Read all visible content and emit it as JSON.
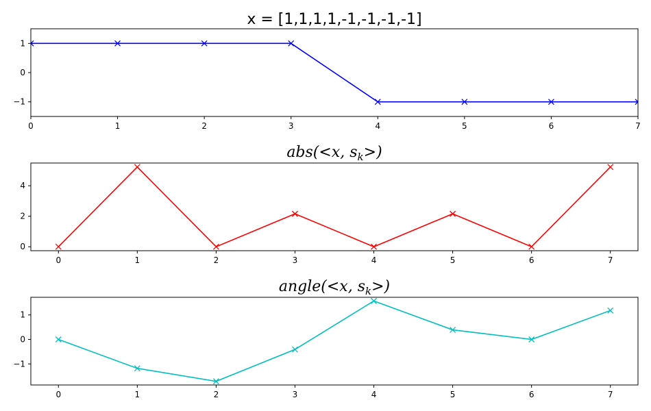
{
  "chart_data": [
    {
      "type": "line",
      "title": "x = [1,1,1,1,-1,-1,-1,-1]",
      "x": [
        0,
        1,
        2,
        3,
        4,
        5,
        6,
        7
      ],
      "series": [
        {
          "values": [
            1,
            1,
            1,
            1,
            -1,
            -1,
            -1,
            -1
          ],
          "color": "#0000ff",
          "marker": "x"
        }
      ],
      "xlim": [
        0,
        7
      ],
      "ylim": [
        -1.5,
        1.5
      ],
      "xticks": [
        0,
        1,
        2,
        3,
        4,
        5,
        6,
        7
      ],
      "yticks": [
        -1,
        0,
        1
      ],
      "ytick_labels": [
        "−1",
        "0",
        "1"
      ],
      "grid": false
    },
    {
      "type": "line",
      "title": "abs(<x, s_k>)",
      "title_parts": [
        "abs(<",
        "x",
        ", ",
        "s",
        "k",
        ">)"
      ],
      "x": [
        0,
        1,
        2,
        3,
        4,
        5,
        6,
        7
      ],
      "series": [
        {
          "values": [
            0,
            5.23,
            0,
            2.16,
            0,
            2.16,
            0,
            5.23
          ],
          "color": "#ff0000",
          "marker": "x"
        }
      ],
      "xlim": [
        -0.35,
        7.35
      ],
      "ylim": [
        -0.26,
        5.49
      ],
      "xticks": [
        0,
        1,
        2,
        3,
        4,
        5,
        6,
        7
      ],
      "yticks": [
        0,
        2,
        4
      ],
      "ytick_labels": [
        "0",
        "2",
        "4"
      ],
      "grid": false
    },
    {
      "type": "line",
      "title": "angle(<x, s_k>)",
      "title_parts": [
        "angle(<",
        "x",
        ", ",
        "s",
        "k",
        ">)"
      ],
      "x": [
        0,
        1,
        2,
        3,
        4,
        5,
        6,
        7
      ],
      "series": [
        {
          "values": [
            0,
            -1.18,
            -1.71,
            -0.41,
            1.57,
            0.39,
            0,
            1.18
          ],
          "color": "#00bfbf",
          "marker": "x"
        }
      ],
      "xlim": [
        -0.35,
        7.35
      ],
      "ylim": [
        -1.86,
        1.72
      ],
      "xticks": [
        0,
        1,
        2,
        3,
        4,
        5,
        6,
        7
      ],
      "yticks": [
        -1,
        0,
        1
      ],
      "ytick_labels": [
        "−1",
        "0",
        "1"
      ],
      "grid": false
    }
  ]
}
